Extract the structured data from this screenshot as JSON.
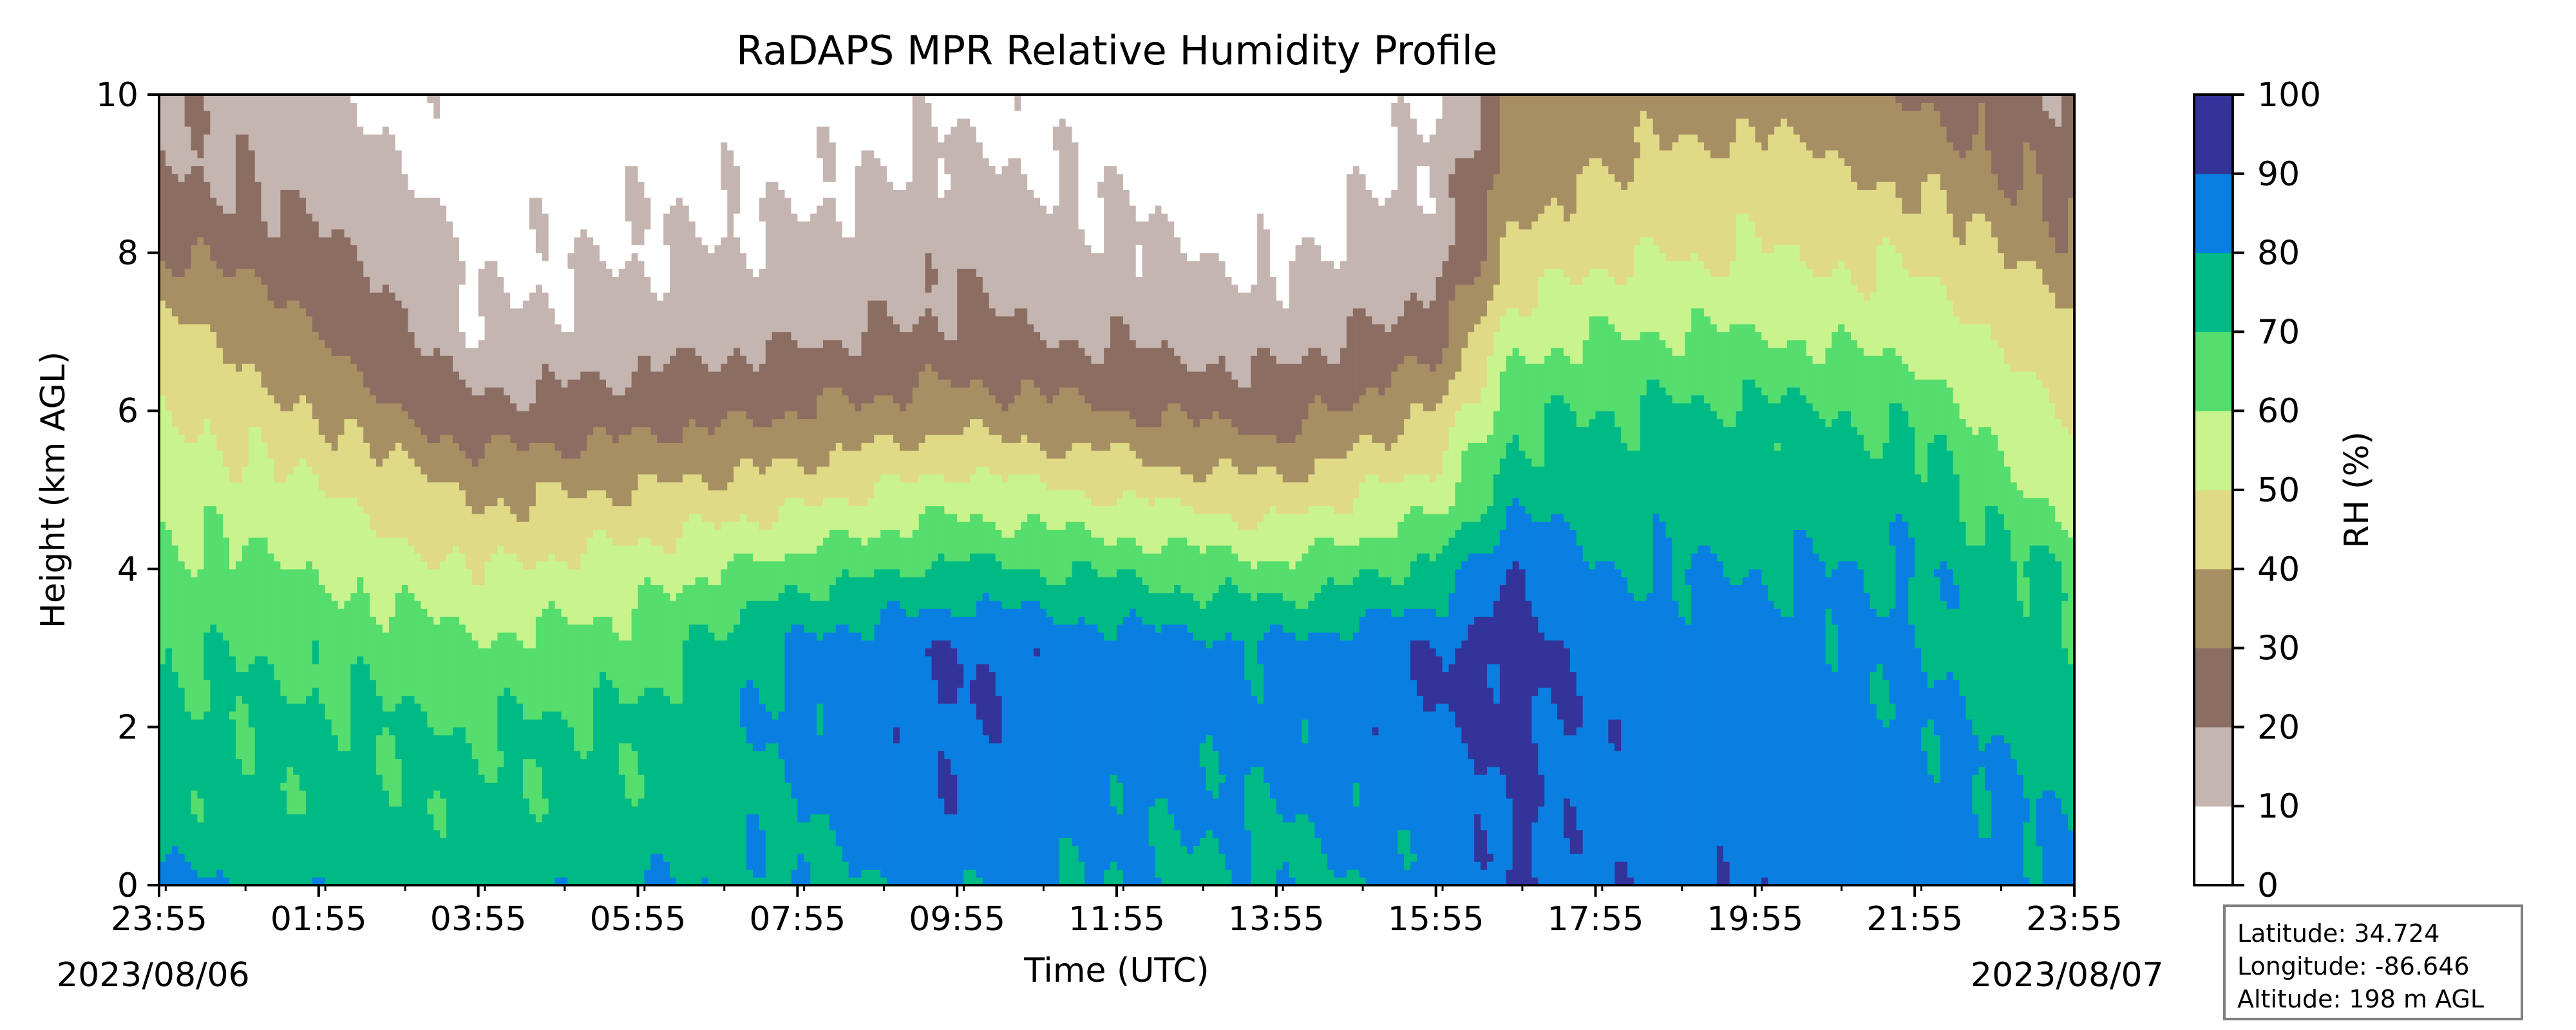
{
  "chart_data": {
    "type": "heatmap",
    "title": "RaDAPS MPR Relative Humidity Profile",
    "xlabel": "Time (UTC)",
    "ylabel": "Height (km AGL)",
    "x_tick_labels": [
      "23:55",
      "01:55",
      "03:55",
      "05:55",
      "07:55",
      "09:55",
      "11:55",
      "13:55",
      "15:55",
      "17:55",
      "19:55",
      "21:55",
      "23:55"
    ],
    "x_hours": [
      -0.0833,
      1.9167,
      3.9167,
      5.9167,
      7.9167,
      9.9167,
      11.9167,
      13.9167,
      15.9167,
      17.9167,
      19.9167,
      21.9167,
      23.9167
    ],
    "xlim_hours": [
      -0.0833,
      23.9167
    ],
    "start_date": "2023/08/06",
    "end_date": "2023/08/07",
    "y_ticks": [
      0,
      2,
      4,
      6,
      8,
      10
    ],
    "ylim": [
      0,
      10
    ],
    "colorbar": {
      "label": "RH (%)",
      "levels": [
        0,
        10,
        20,
        30,
        40,
        50,
        60,
        70,
        80,
        90,
        100
      ],
      "colors": [
        "#ffffff",
        "#c5b5b1",
        "#8c6d62",
        "#a78f64",
        "#e0d986",
        "#c9f48d",
        "#55dd6e",
        "#00ba86",
        "#0a7fe2",
        "#333399"
      ]
    },
    "profile_rh": {
      "heights_km": [
        0,
        1,
        2,
        3,
        4,
        5,
        6,
        7,
        8,
        9,
        10
      ],
      "times_hours": [
        -0.08,
        1.92,
        3.92,
        5.92,
        7.92,
        9.92,
        11.92,
        13.92,
        15.92,
        16.9,
        17.92,
        19.92,
        21.92,
        23.92
      ],
      "rh": [
        [
          82,
          72,
          72,
          70,
          63,
          58,
          52,
          45,
          30,
          22,
          20
        ],
        [
          78,
          72,
          72,
          68,
          60,
          50,
          40,
          30,
          22,
          15,
          12
        ],
        [
          75,
          72,
          70,
          62,
          50,
          38,
          22,
          10,
          8,
          5,
          5
        ],
        [
          80,
          72,
          72,
          65,
          55,
          40,
          25,
          15,
          10,
          8,
          5
        ],
        [
          78,
          80,
          82,
          82,
          65,
          45,
          30,
          18,
          12,
          8,
          5
        ],
        [
          82,
          88,
          90,
          90,
          72,
          55,
          35,
          22,
          18,
          12,
          8
        ],
        [
          80,
          82,
          85,
          85,
          68,
          48,
          30,
          18,
          12,
          8,
          5
        ],
        [
          78,
          80,
          82,
          82,
          62,
          42,
          25,
          15,
          8,
          4,
          3
        ],
        [
          82,
          85,
          90,
          90,
          72,
          55,
          40,
          25,
          15,
          12,
          8
        ],
        [
          90,
          92,
          92,
          95,
          92,
          75,
          68,
          55,
          42,
          35,
          30
        ],
        [
          88,
          85,
          88,
          85,
          80,
          75,
          70,
          60,
          48,
          40,
          35
        ],
        [
          88,
          85,
          85,
          85,
          80,
          75,
          72,
          60,
          50,
          45,
          35
        ],
        [
          85,
          85,
          82,
          80,
          80,
          75,
          68,
          55,
          48,
          38,
          30
        ],
        [
          82,
          78,
          75,
          72,
          68,
          55,
          48,
          42,
          32,
          25,
          20
        ]
      ]
    },
    "info_box": {
      "latitude": "Latitude: 34.724",
      "longitude": "Longitude: -86.646",
      "altitude": "Altitude: 198 m AGL"
    }
  }
}
